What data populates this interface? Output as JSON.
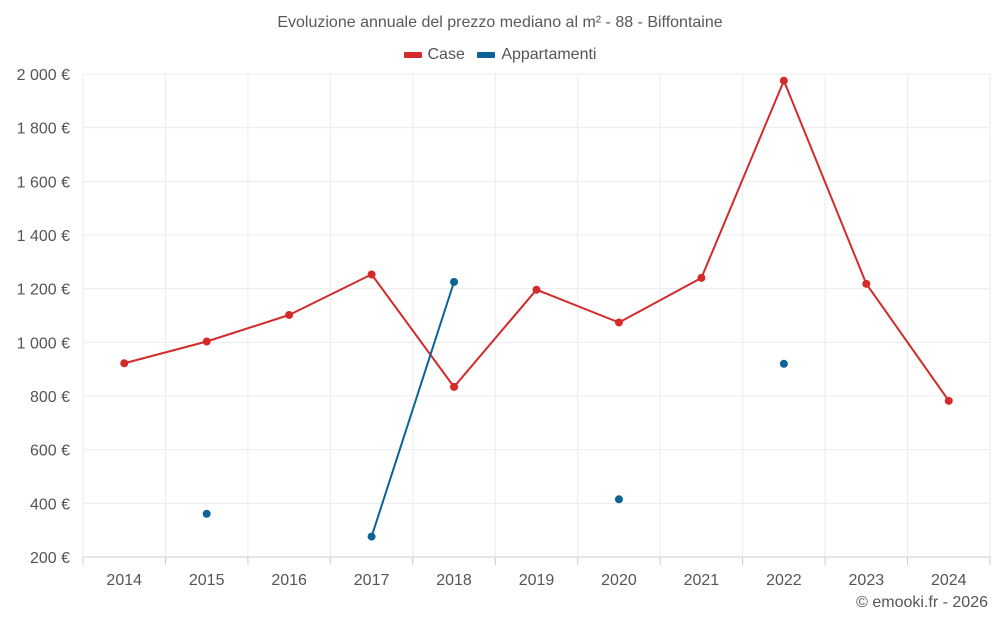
{
  "chart_data": {
    "type": "line",
    "title": "Evoluzione annuale del prezzo mediano al m² - 88 - Biffontaine",
    "categories": [
      "2014",
      "2015",
      "2016",
      "2017",
      "2018",
      "2019",
      "2020",
      "2021",
      "2022",
      "2023",
      "2024"
    ],
    "series": [
      {
        "name": "Case",
        "color": "#d42a2a",
        "values": [
          922,
          1003,
          1102,
          1253,
          834,
          1196,
          1074,
          1240,
          1975,
          1218,
          782
        ]
      },
      {
        "name": "Appartamenti",
        "color": "#0d6296",
        "values": [
          null,
          361,
          null,
          276,
          1225,
          null,
          415,
          null,
          920,
          null,
          null
        ]
      }
    ],
    "ylim": [
      200,
      2000
    ],
    "yticks": [
      200,
      400,
      600,
      800,
      1000,
      1200,
      1400,
      1600,
      1800,
      2000
    ],
    "ytick_labels": [
      "200 €",
      "400 €",
      "600 €",
      "800 €",
      "1 000 €",
      "1 200 €",
      "1 400 €",
      "1 600 €",
      "1 800 €",
      "2 000 €"
    ],
    "xlabel": "",
    "ylabel": "",
    "grid": true,
    "legend_position": "top-center"
  },
  "credit": "© emooki.fr - 2026"
}
